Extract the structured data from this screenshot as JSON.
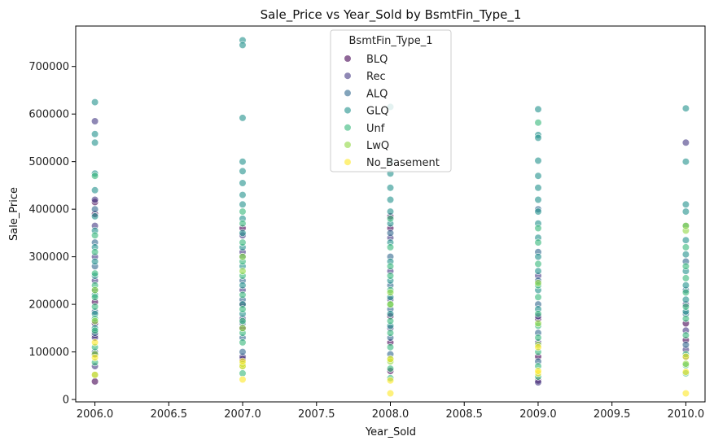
{
  "chart_data": {
    "type": "scatter",
    "title": "Sale_Price vs Year_Sold by BsmtFin_Type_1",
    "xlabel": "Year_Sold",
    "ylabel": "Sale_Price",
    "xlim": [
      2005.87,
      2010.13
    ],
    "ylim": [
      -5000,
      785000
    ],
    "xticks": [
      2006.0,
      2006.5,
      2007.0,
      2007.5,
      2008.0,
      2008.5,
      2009.0,
      2009.5,
      2010.0
    ],
    "xtick_labels": [
      "2006.0",
      "2006.5",
      "2007.0",
      "2007.5",
      "2008.0",
      "2008.5",
      "2009.0",
      "2009.5",
      "2010.0"
    ],
    "yticks": [
      0,
      100000,
      200000,
      300000,
      400000,
      500000,
      600000,
      700000
    ],
    "ytick_labels": [
      "0",
      "100000",
      "200000",
      "300000",
      "400000",
      "500000",
      "600000",
      "700000"
    ],
    "grid": false,
    "legend": {
      "title": "BsmtFin_Type_1",
      "placement": "top-center"
    },
    "series": [
      {
        "name": "BLQ",
        "color": "#440154",
        "points": [
          [
            2006,
            38000
          ],
          [
            2006,
            95000
          ],
          [
            2006,
            135000
          ],
          [
            2006,
            160000
          ],
          [
            2006,
            205000
          ],
          [
            2006,
            390000
          ],
          [
            2006,
            415000
          ],
          [
            2007,
            85000
          ],
          [
            2007,
            150000
          ],
          [
            2007,
            200000
          ],
          [
            2007,
            360000
          ],
          [
            2008,
            60000
          ],
          [
            2008,
            120000
          ],
          [
            2008,
            175000
          ],
          [
            2008,
            360000
          ],
          [
            2008,
            385000
          ],
          [
            2009,
            40000
          ],
          [
            2009,
            90000
          ],
          [
            2009,
            170000
          ],
          [
            2010,
            125000
          ],
          [
            2010,
            160000
          ]
        ]
      },
      {
        "name": "Rec",
        "color": "#443983",
        "points": [
          [
            2006,
            585000
          ],
          [
            2006,
            70000
          ],
          [
            2006,
            130000
          ],
          [
            2006,
            250000
          ],
          [
            2006,
            300000
          ],
          [
            2006,
            365000
          ],
          [
            2006,
            420000
          ],
          [
            2007,
            90000
          ],
          [
            2007,
            170000
          ],
          [
            2007,
            230000
          ],
          [
            2007,
            310000
          ],
          [
            2007,
            345000
          ],
          [
            2008,
            150000
          ],
          [
            2008,
            210000
          ],
          [
            2008,
            270000
          ],
          [
            2008,
            340000
          ],
          [
            2009,
            36000
          ],
          [
            2009,
            120000
          ],
          [
            2009,
            175000
          ],
          [
            2009,
            260000
          ],
          [
            2010,
            540000
          ],
          [
            2010,
            105000
          ],
          [
            2010,
            145000
          ],
          [
            2010,
            200000
          ]
        ]
      },
      {
        "name": "ALQ",
        "color": "#31688e",
        "points": [
          [
            2006,
            100000
          ],
          [
            2006,
            140000
          ],
          [
            2006,
            185000
          ],
          [
            2006,
            230000
          ],
          [
            2006,
            280000
          ],
          [
            2006,
            330000
          ],
          [
            2006,
            400000
          ],
          [
            2007,
            100000
          ],
          [
            2007,
            130000
          ],
          [
            2007,
            160000
          ],
          [
            2007,
            210000
          ],
          [
            2007,
            250000
          ],
          [
            2007,
            300000
          ],
          [
            2008,
            95000
          ],
          [
            2008,
            130000
          ],
          [
            2008,
            190000
          ],
          [
            2008,
            240000
          ],
          [
            2008,
            300000
          ],
          [
            2008,
            350000
          ],
          [
            2009,
            80000
          ],
          [
            2009,
            140000
          ],
          [
            2009,
            200000
          ],
          [
            2009,
            250000
          ],
          [
            2009,
            310000
          ],
          [
            2009,
            400000
          ],
          [
            2010,
            90000
          ],
          [
            2010,
            115000
          ],
          [
            2010,
            180000
          ],
          [
            2010,
            230000
          ],
          [
            2010,
            290000
          ]
        ]
      },
      {
        "name": "GLQ",
        "color": "#21918c",
        "points": [
          [
            2006,
            625000
          ],
          [
            2006,
            558000
          ],
          [
            2006,
            540000
          ],
          [
            2006,
            475000
          ],
          [
            2006,
            440000
          ],
          [
            2006,
            385000
          ],
          [
            2006,
            355000
          ],
          [
            2006,
            320000
          ],
          [
            2006,
            290000
          ],
          [
            2006,
            260000
          ],
          [
            2006,
            220000
          ],
          [
            2006,
            180000
          ],
          [
            2006,
            150000
          ],
          [
            2007,
            755000
          ],
          [
            2007,
            745000
          ],
          [
            2007,
            592000
          ],
          [
            2007,
            500000
          ],
          [
            2007,
            480000
          ],
          [
            2007,
            455000
          ],
          [
            2007,
            430000
          ],
          [
            2007,
            410000
          ],
          [
            2007,
            380000
          ],
          [
            2007,
            350000
          ],
          [
            2007,
            320000
          ],
          [
            2007,
            280000
          ],
          [
            2007,
            240000
          ],
          [
            2007,
            200000
          ],
          [
            2007,
            180000
          ],
          [
            2008,
            615000
          ],
          [
            2008,
            500000
          ],
          [
            2008,
            475000
          ],
          [
            2008,
            445000
          ],
          [
            2008,
            420000
          ],
          [
            2008,
            395000
          ],
          [
            2008,
            370000
          ],
          [
            2008,
            330000
          ],
          [
            2008,
            290000
          ],
          [
            2008,
            250000
          ],
          [
            2008,
            215000
          ],
          [
            2008,
            180000
          ],
          [
            2008,
            155000
          ],
          [
            2009,
            610000
          ],
          [
            2009,
            556000
          ],
          [
            2009,
            550000
          ],
          [
            2009,
            502000
          ],
          [
            2009,
            470000
          ],
          [
            2009,
            445000
          ],
          [
            2009,
            420000
          ],
          [
            2009,
            395000
          ],
          [
            2009,
            370000
          ],
          [
            2009,
            340000
          ],
          [
            2009,
            300000
          ],
          [
            2009,
            270000
          ],
          [
            2009,
            230000
          ],
          [
            2009,
            190000
          ],
          [
            2010,
            612000
          ],
          [
            2010,
            500000
          ],
          [
            2010,
            410000
          ],
          [
            2010,
            395000
          ],
          [
            2010,
            365000
          ],
          [
            2010,
            335000
          ],
          [
            2010,
            305000
          ],
          [
            2010,
            270000
          ],
          [
            2010,
            240000
          ],
          [
            2010,
            210000
          ],
          [
            2010,
            185000
          ]
        ]
      },
      {
        "name": "Unf",
        "color": "#35b779",
        "points": [
          [
            2006,
            52000
          ],
          [
            2006,
            78000
          ],
          [
            2006,
            110000
          ],
          [
            2006,
            145000
          ],
          [
            2006,
            170000
          ],
          [
            2006,
            195000
          ],
          [
            2006,
            215000
          ],
          [
            2006,
            240000
          ],
          [
            2006,
            265000
          ],
          [
            2006,
            310000
          ],
          [
            2006,
            345000
          ],
          [
            2006,
            470000
          ],
          [
            2007,
            55000
          ],
          [
            2007,
            70000
          ],
          [
            2007,
            120000
          ],
          [
            2007,
            140000
          ],
          [
            2007,
            165000
          ],
          [
            2007,
            190000
          ],
          [
            2007,
            220000
          ],
          [
            2007,
            260000
          ],
          [
            2007,
            290000
          ],
          [
            2007,
            330000
          ],
          [
            2007,
            370000
          ],
          [
            2007,
            395000
          ],
          [
            2008,
            45000
          ],
          [
            2008,
            65000
          ],
          [
            2008,
            85000
          ],
          [
            2008,
            110000
          ],
          [
            2008,
            140000
          ],
          [
            2008,
            165000
          ],
          [
            2008,
            200000
          ],
          [
            2008,
            230000
          ],
          [
            2008,
            260000
          ],
          [
            2008,
            280000
          ],
          [
            2008,
            320000
          ],
          [
            2008,
            380000
          ],
          [
            2009,
            582000
          ],
          [
            2009,
            48000
          ],
          [
            2009,
            70000
          ],
          [
            2009,
            100000
          ],
          [
            2009,
            130000
          ],
          [
            2009,
            155000
          ],
          [
            2009,
            180000
          ],
          [
            2009,
            215000
          ],
          [
            2009,
            240000
          ],
          [
            2009,
            285000
          ],
          [
            2009,
            330000
          ],
          [
            2009,
            360000
          ],
          [
            2010,
            55000
          ],
          [
            2010,
            72000
          ],
          [
            2010,
            95000
          ],
          [
            2010,
            135000
          ],
          [
            2010,
            170000
          ],
          [
            2010,
            195000
          ],
          [
            2010,
            225000
          ],
          [
            2010,
            255000
          ],
          [
            2010,
            280000
          ],
          [
            2010,
            320000
          ]
        ]
      },
      {
        "name": "LwQ",
        "color": "#90d743",
        "points": [
          [
            2006,
            95000
          ],
          [
            2006,
            165000
          ],
          [
            2006,
            230000
          ],
          [
            2007,
            75000
          ],
          [
            2007,
            150000
          ],
          [
            2007,
            270000
          ],
          [
            2007,
            300000
          ],
          [
            2008,
            80000
          ],
          [
            2008,
            200000
          ],
          [
            2008,
            225000
          ],
          [
            2009,
            115000
          ],
          [
            2009,
            160000
          ],
          [
            2009,
            245000
          ],
          [
            2010,
            75000
          ],
          [
            2010,
            355000
          ],
          [
            2010,
            365000
          ]
        ]
      },
      {
        "name": "No_Basement",
        "color": "#fde725",
        "points": [
          [
            2006,
            52000
          ],
          [
            2006,
            88000
          ],
          [
            2006,
            120000
          ],
          [
            2007,
            42000
          ],
          [
            2007,
            70000
          ],
          [
            2007,
            80000
          ],
          [
            2008,
            13000
          ],
          [
            2008,
            40000
          ],
          [
            2008,
            85000
          ],
          [
            2009,
            55000
          ],
          [
            2009,
            60000
          ],
          [
            2009,
            110000
          ],
          [
            2010,
            13000
          ],
          [
            2010,
            58000
          ],
          [
            2010,
            90000
          ]
        ]
      }
    ]
  }
}
